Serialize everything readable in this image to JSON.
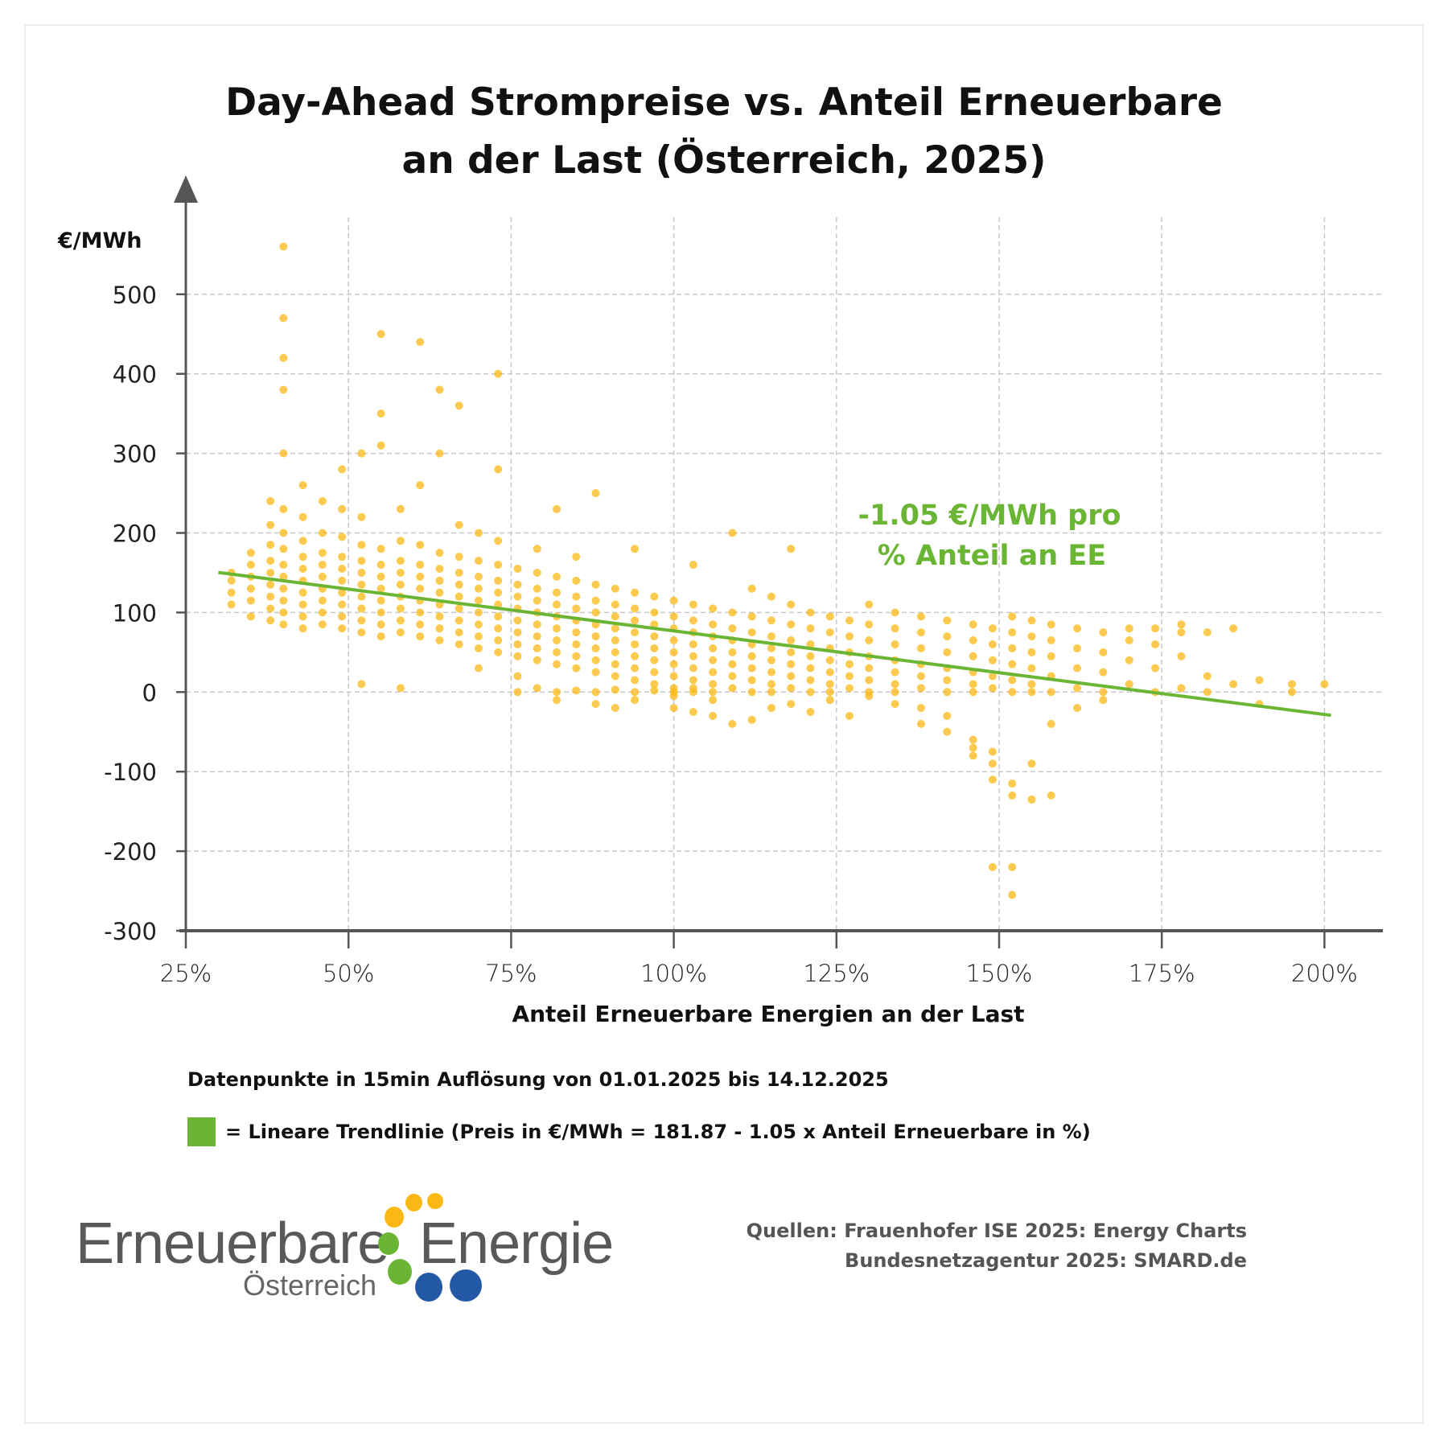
{
  "title_line1": "Day-Ahead Strompreise vs. Anteil Erneuerbare",
  "title_line2": "an der Last (Österreich, 2025)",
  "note": "Datenpunkte in 15min Auflösung von 01.01.2025 bis 14.12.2025",
  "legend_label": "= Lineare Trendlinie (Preis in €/MWh = 181.87 - 1.05 x Anteil Erneuerbare in %)",
  "sources": [
    "Quellen: Frauenhofer ISE 2025: Energy Charts",
    "Bundesnetzagentur 2025: SMARD.de"
  ],
  "logo": {
    "word1": "Erneuerbare",
    "word2": "Energie",
    "sub": "Österreich"
  },
  "colors": {
    "points": "#fbb814",
    "trend": "#6ab534",
    "axis": "#555555",
    "grid": "#c8c8c8",
    "logo_yellow": "#fbb814",
    "logo_green": "#6ab534",
    "logo_blue": "#2358a6"
  },
  "chart_data": {
    "type": "scatter",
    "title": "Day-Ahead Strompreise vs. Anteil Erneuerbare an der Last (Österreich, 2025)",
    "xlabel": "Anteil Erneuerbare Energien an der Last",
    "ylabel": "€/MWh",
    "xlim": [
      25,
      210
    ],
    "ylim": [
      -300,
      570
    ],
    "x_ticks": [
      25,
      50,
      75,
      100,
      125,
      150,
      175,
      200
    ],
    "x_tick_labels": [
      "25%",
      "50%",
      "75%",
      "100%",
      "125%",
      "150%",
      "175%",
      "200%"
    ],
    "y_ticks": [
      500,
      400,
      300,
      200,
      100,
      0,
      -100,
      -200,
      -300
    ],
    "y_tick_labels": [
      "500",
      "400",
      "300",
      "200",
      "100",
      "0",
      "-100",
      "-200",
      "-300"
    ],
    "grid": true,
    "trendline": {
      "intercept": 181.87,
      "slope": -1.05,
      "x_range": [
        30,
        201
      ]
    },
    "annotation": [
      "-1.05 €/MWh pro",
      "% Anteil an EE"
    ],
    "points_by_x": [
      {
        "x": 32,
        "y": [
          110,
          125,
          140,
          150
        ]
      },
      {
        "x": 35,
        "y": [
          95,
          115,
          130,
          145,
          160,
          175
        ]
      },
      {
        "x": 38,
        "y": [
          90,
          105,
          120,
          135,
          150,
          165,
          185,
          210,
          240
        ]
      },
      {
        "x": 40,
        "y": [
          85,
          100,
          115,
          130,
          145,
          160,
          180,
          200,
          230,
          300,
          380,
          420,
          470,
          560
        ]
      },
      {
        "x": 43,
        "y": [
          80,
          95,
          110,
          125,
          140,
          155,
          170,
          190,
          220,
          260
        ]
      },
      {
        "x": 46,
        "y": [
          85,
          100,
          115,
          130,
          145,
          160,
          175,
          200,
          240
        ]
      },
      {
        "x": 49,
        "y": [
          80,
          95,
          110,
          125,
          140,
          155,
          170,
          195,
          230,
          280
        ]
      },
      {
        "x": 52,
        "y": [
          75,
          90,
          105,
          120,
          135,
          150,
          165,
          185,
          10,
          220,
          300
        ]
      },
      {
        "x": 55,
        "y": [
          70,
          85,
          100,
          115,
          130,
          145,
          160,
          180,
          310,
          350,
          450
        ]
      },
      {
        "x": 58,
        "y": [
          75,
          90,
          105,
          120,
          135,
          150,
          165,
          190,
          230,
          5
        ]
      },
      {
        "x": 61,
        "y": [
          70,
          85,
          100,
          115,
          130,
          145,
          160,
          185,
          260,
          440
        ]
      },
      {
        "x": 64,
        "y": [
          65,
          80,
          95,
          110,
          125,
          140,
          155,
          175,
          300,
          380
        ]
      },
      {
        "x": 67,
        "y": [
          60,
          75,
          90,
          105,
          120,
          135,
          150,
          170,
          210,
          360
        ]
      },
      {
        "x": 70,
        "y": [
          55,
          70,
          85,
          100,
          115,
          130,
          145,
          165,
          200,
          30
        ]
      },
      {
        "x": 73,
        "y": [
          50,
          65,
          80,
          95,
          110,
          125,
          140,
          160,
          190,
          280,
          400
        ]
      },
      {
        "x": 76,
        "y": [
          45,
          60,
          75,
          90,
          105,
          120,
          135,
          155,
          0,
          20
        ]
      },
      {
        "x": 79,
        "y": [
          40,
          55,
          70,
          85,
          100,
          115,
          130,
          150,
          180,
          5
        ]
      },
      {
        "x": 82,
        "y": [
          35,
          50,
          65,
          80,
          95,
          110,
          125,
          145,
          0,
          -10,
          230
        ]
      },
      {
        "x": 85,
        "y": [
          30,
          45,
          60,
          75,
          90,
          105,
          120,
          140,
          170,
          2
        ]
      },
      {
        "x": 88,
        "y": [
          25,
          40,
          55,
          70,
          85,
          100,
          115,
          135,
          0,
          -15,
          250
        ]
      },
      {
        "x": 91,
        "y": [
          20,
          35,
          50,
          65,
          80,
          95,
          110,
          130,
          3,
          -20
        ]
      },
      {
        "x": 94,
        "y": [
          15,
          30,
          45,
          60,
          75,
          90,
          105,
          125,
          0,
          -10,
          180
        ]
      },
      {
        "x": 97,
        "y": [
          10,
          25,
          40,
          55,
          70,
          85,
          100,
          120,
          2
        ]
      },
      {
        "x": 100,
        "y": [
          5,
          20,
          35,
          50,
          65,
          80,
          95,
          115,
          0,
          -20,
          -5
        ]
      },
      {
        "x": 103,
        "y": [
          0,
          15,
          30,
          45,
          60,
          75,
          90,
          110,
          5,
          -25,
          160
        ]
      },
      {
        "x": 106,
        "y": [
          0,
          10,
          25,
          40,
          55,
          70,
          85,
          105,
          -30,
          -10
        ]
      },
      {
        "x": 109,
        "y": [
          5,
          20,
          35,
          50,
          65,
          80,
          100,
          -40,
          200
        ]
      },
      {
        "x": 112,
        "y": [
          0,
          15,
          30,
          45,
          60,
          75,
          95,
          130,
          -35
        ]
      },
      {
        "x": 115,
        "y": [
          0,
          10,
          25,
          40,
          55,
          70,
          90,
          120,
          -20
        ]
      },
      {
        "x": 118,
        "y": [
          5,
          20,
          35,
          50,
          65,
          85,
          110,
          -15,
          180
        ]
      },
      {
        "x": 121,
        "y": [
          0,
          15,
          30,
          45,
          60,
          80,
          100,
          -25
        ]
      },
      {
        "x": 124,
        "y": [
          0,
          10,
          25,
          40,
          55,
          75,
          95,
          -10
        ]
      },
      {
        "x": 127,
        "y": [
          5,
          20,
          35,
          50,
          70,
          90,
          -30
        ]
      },
      {
        "x": 130,
        "y": [
          0,
          15,
          30,
          45,
          65,
          85,
          110,
          -5
        ]
      },
      {
        "x": 134,
        "y": [
          0,
          10,
          25,
          40,
          60,
          80,
          100,
          -15
        ]
      },
      {
        "x": 138,
        "y": [
          5,
          20,
          35,
          55,
          75,
          95,
          -20,
          -40
        ]
      },
      {
        "x": 142,
        "y": [
          0,
          15,
          30,
          50,
          70,
          90,
          -50,
          -30
        ]
      },
      {
        "x": 146,
        "y": [
          0,
          10,
          25,
          45,
          65,
          85,
          -60,
          -80,
          -70
        ]
      },
      {
        "x": 149,
        "y": [
          5,
          20,
          40,
          60,
          80,
          -90,
          -110,
          -220,
          -75
        ]
      },
      {
        "x": 152,
        "y": [
          0,
          15,
          35,
          55,
          75,
          95,
          -115,
          -130,
          -255,
          -220
        ]
      },
      {
        "x": 155,
        "y": [
          0,
          10,
          30,
          50,
          70,
          90,
          -90,
          -135
        ]
      },
      {
        "x": 158,
        "y": [
          0,
          20,
          45,
          65,
          85,
          -130,
          -40
        ]
      },
      {
        "x": 162,
        "y": [
          5,
          30,
          55,
          80,
          -20
        ]
      },
      {
        "x": 166,
        "y": [
          0,
          25,
          50,
          75,
          -10
        ]
      },
      {
        "x": 170,
        "y": [
          10,
          40,
          65,
          80
        ]
      },
      {
        "x": 174,
        "y": [
          0,
          30,
          60,
          80
        ]
      },
      {
        "x": 178,
        "y": [
          5,
          45,
          75,
          85
        ]
      },
      {
        "x": 182,
        "y": [
          0,
          20,
          75
        ]
      },
      {
        "x": 186,
        "y": [
          10,
          80
        ]
      },
      {
        "x": 190,
        "y": [
          15,
          -15
        ]
      },
      {
        "x": 195,
        "y": [
          0,
          10
        ]
      },
      {
        "x": 200,
        "y": [
          10
        ]
      }
    ]
  }
}
